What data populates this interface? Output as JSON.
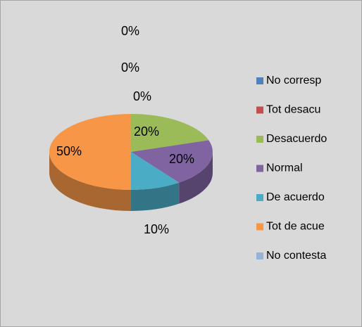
{
  "chart_data": {
    "type": "pie3d",
    "categories": [
      "No corresp",
      "Tot desacu",
      "Desacuerdo",
      "Normal",
      "De acuerdo",
      "Tot de acue",
      "No contesta"
    ],
    "values": [
      0,
      0,
      20,
      20,
      10,
      50,
      0
    ],
    "value_labels": [
      "0%",
      "0%",
      "20%",
      "20%",
      "10%",
      "50%",
      "0%"
    ],
    "colors": [
      "#4f81bd",
      "#c0504d",
      "#9bbb59",
      "#8064a2",
      "#4bacc6",
      "#f79646",
      "#95b3d7"
    ]
  }
}
